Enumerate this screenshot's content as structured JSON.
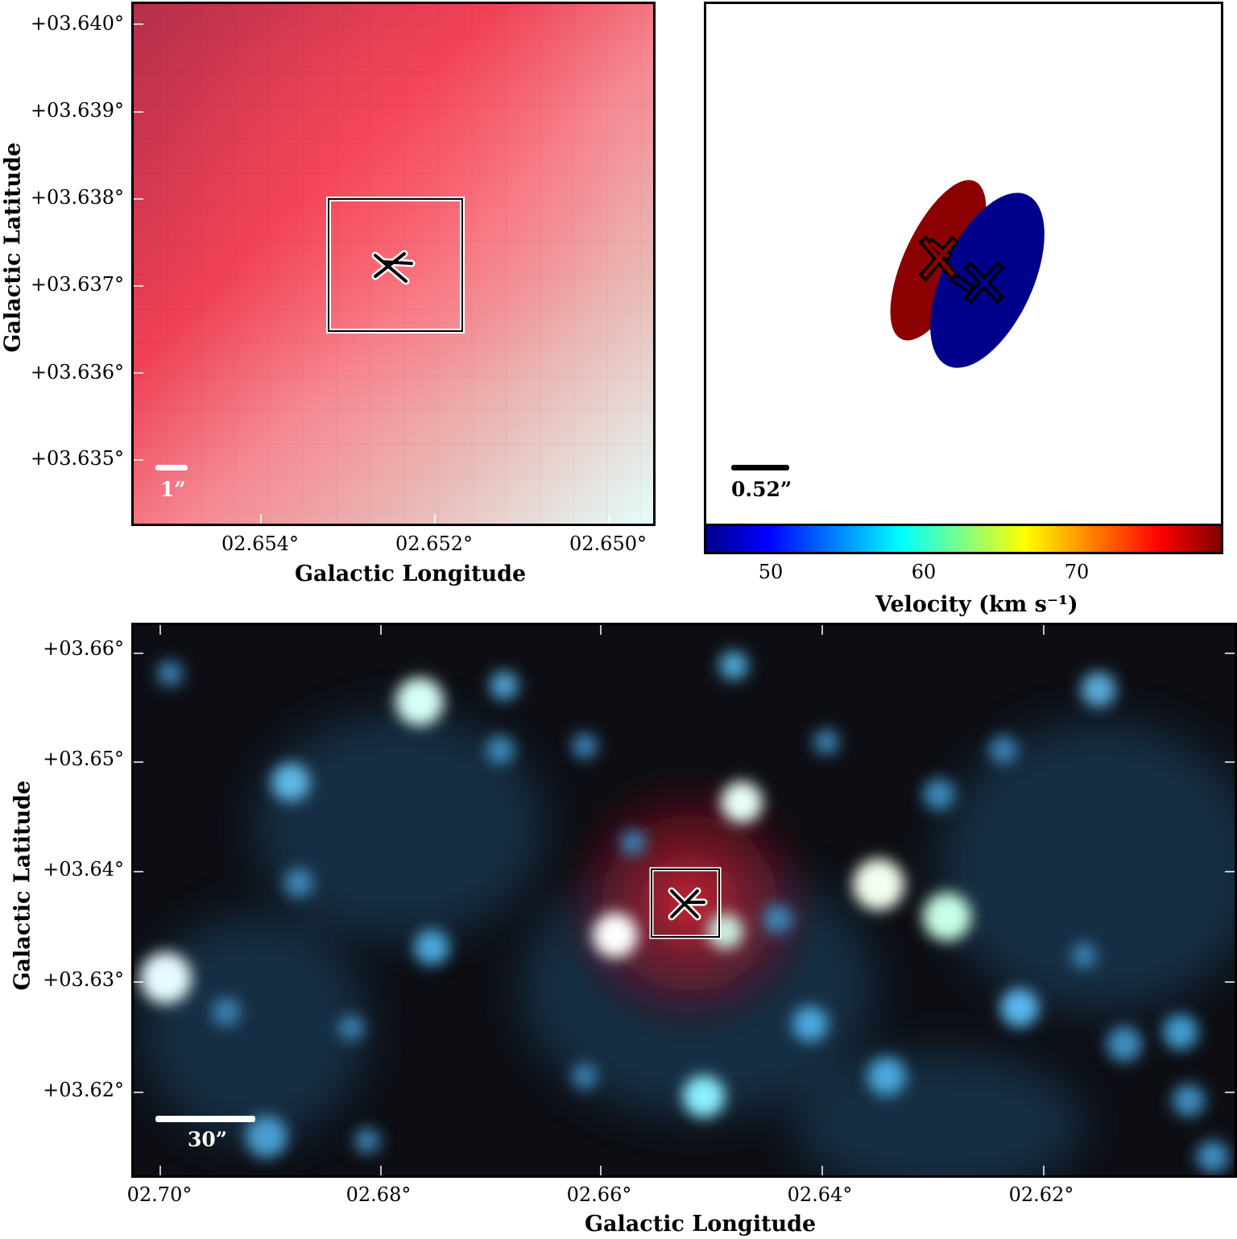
{
  "panel_tl": {
    "y_ticks": [
      "+03.640°",
      "+03.639°",
      "+03.638°",
      "+03.637°",
      "+03.636°",
      "+03.635°"
    ],
    "x_ticks": [
      "02.654°",
      "02.652°",
      "02.650°"
    ],
    "xlabel": "Galactic Longitude",
    "ylabel": "Galactic Latitude",
    "scale_label": "1”"
  },
  "panel_tr": {
    "scale_label": "0.52”",
    "colorbar": {
      "ticks": [
        "50",
        "60",
        "70"
      ],
      "label": "Velocity (km s⁻¹)",
      "range": [
        46,
        79
      ],
      "colormap": "jet"
    },
    "ellipses": [
      {
        "velocity_color": "#8b0000"
      },
      {
        "velocity_color": "#00008b"
      }
    ]
  },
  "panel_bottom": {
    "y_ticks": [
      "+03.66°",
      "+03.65°",
      "+03.64°",
      "+03.63°",
      "+03.62°"
    ],
    "x_ticks": [
      "02.70°",
      "02.68°",
      "02.66°",
      "02.64°",
      "02.62°"
    ],
    "xlabel": "Galactic Longitude",
    "ylabel": "Galactic Latitude",
    "scale_label": "30”"
  }
}
